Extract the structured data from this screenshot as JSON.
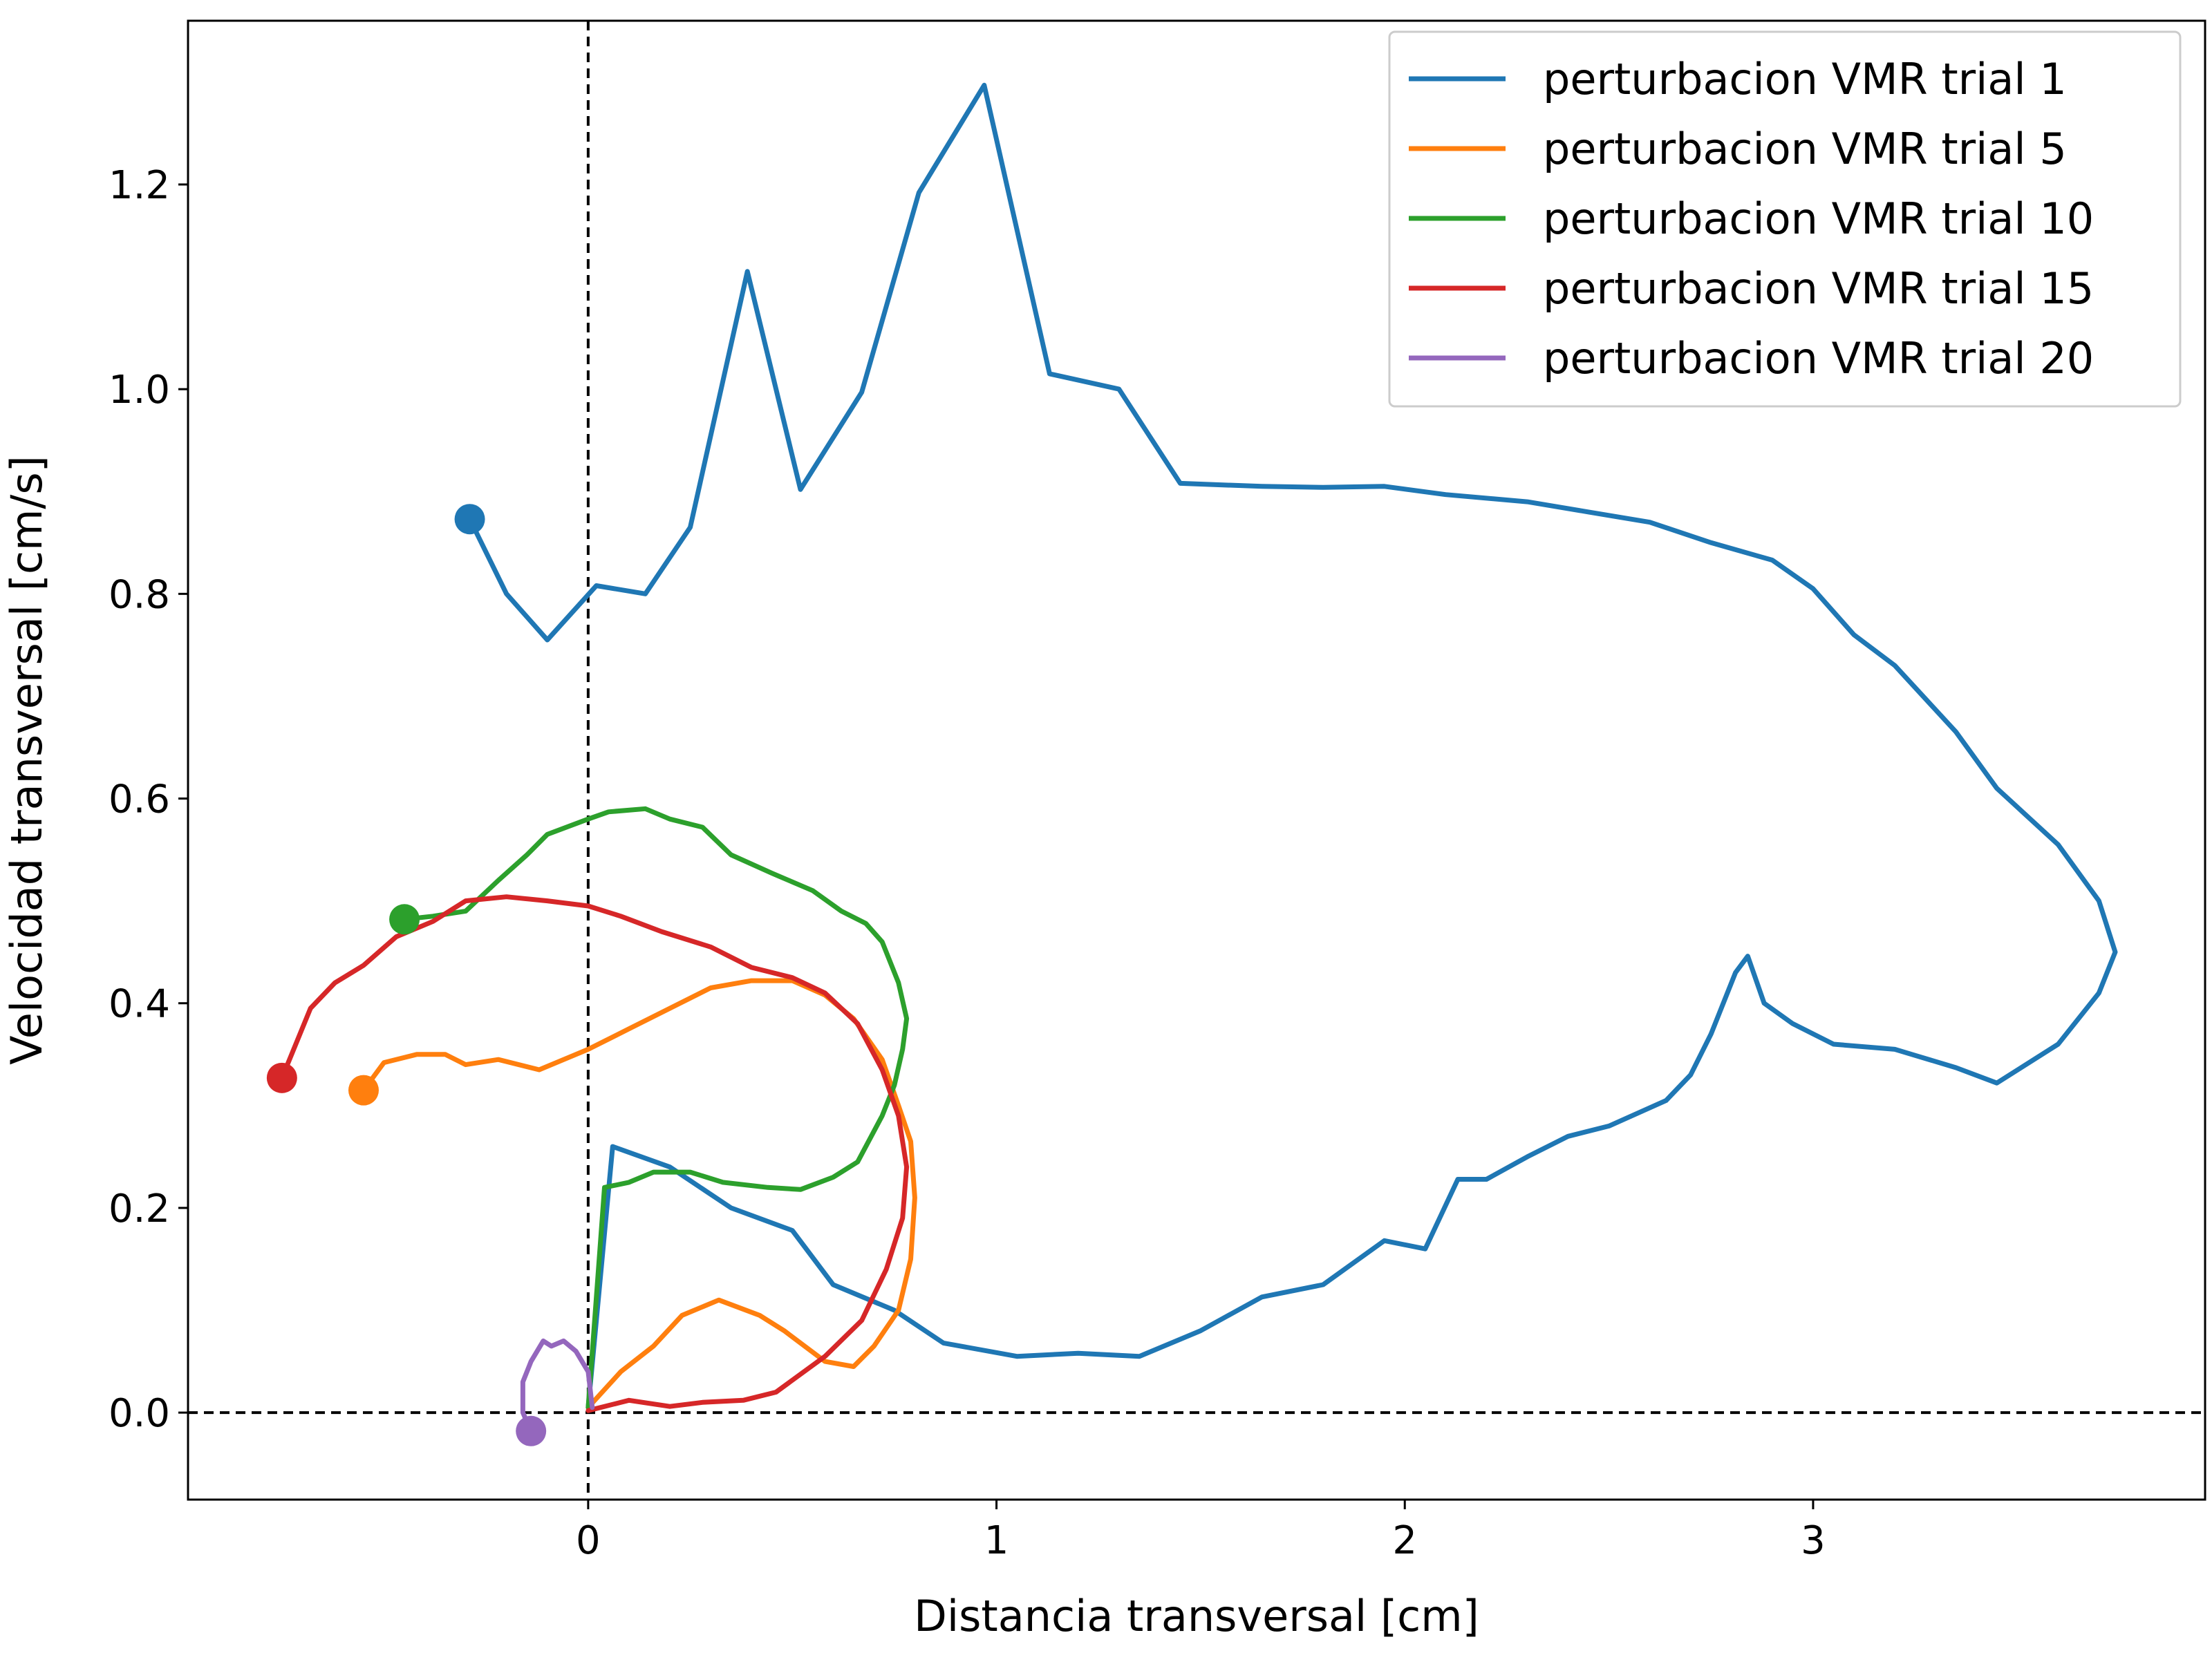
{
  "chart_data": {
    "type": "line",
    "xlabel": "Distancia transversal [cm]",
    "ylabel": "Velocidad transversal [cm/s]",
    "xlim": [
      -0.98,
      3.96
    ],
    "ylim": [
      -0.085,
      1.36
    ],
    "xticks": [
      0,
      1,
      2,
      3
    ],
    "yticks": [
      0.0,
      0.2,
      0.4,
      0.6,
      0.8,
      1.0,
      1.2
    ],
    "xtick_labels": [
      "0",
      "1",
      "2",
      "3"
    ],
    "ytick_labels": [
      "0.0",
      "0.2",
      "0.4",
      "0.6",
      "0.8",
      "1.0",
      "1.2"
    ],
    "reference_lines": {
      "vertical_x": 0,
      "horizontal_y": 0,
      "style": "dashed"
    },
    "legend_position": "top-right",
    "grid": false,
    "series": [
      {
        "name": "perturbacion VMR trial 1",
        "color": "#1f77b4",
        "start_marker": [
          -0.29,
          0.873
        ],
        "points": [
          [
            -0.29,
            0.873
          ],
          [
            -0.2,
            0.8
          ],
          [
            -0.1,
            0.755
          ],
          [
            0.02,
            0.808
          ],
          [
            0.14,
            0.8
          ],
          [
            0.25,
            0.865
          ],
          [
            0.39,
            1.115
          ],
          [
            0.52,
            0.902
          ],
          [
            0.67,
            0.997
          ],
          [
            0.81,
            1.192
          ],
          [
            0.97,
            1.297
          ],
          [
            1.13,
            1.015
          ],
          [
            1.3,
            1.0
          ],
          [
            1.45,
            0.908
          ],
          [
            1.65,
            0.905
          ],
          [
            1.8,
            0.904
          ],
          [
            1.95,
            0.905
          ],
          [
            2.1,
            0.897
          ],
          [
            2.3,
            0.89
          ],
          [
            2.45,
            0.88
          ],
          [
            2.6,
            0.87
          ],
          [
            2.75,
            0.85
          ],
          [
            2.9,
            0.833
          ],
          [
            3.0,
            0.805
          ],
          [
            3.1,
            0.76
          ],
          [
            3.2,
            0.73
          ],
          [
            3.35,
            0.665
          ],
          [
            3.45,
            0.61
          ],
          [
            3.6,
            0.555
          ],
          [
            3.7,
            0.5
          ],
          [
            3.74,
            0.45
          ],
          [
            3.7,
            0.41
          ],
          [
            3.6,
            0.36
          ],
          [
            3.45,
            0.322
          ],
          [
            3.35,
            0.337
          ],
          [
            3.2,
            0.355
          ],
          [
            3.05,
            0.36
          ],
          [
            2.95,
            0.38
          ],
          [
            2.88,
            0.4
          ],
          [
            2.84,
            0.446
          ],
          [
            2.81,
            0.43
          ],
          [
            2.75,
            0.37
          ],
          [
            2.7,
            0.33
          ],
          [
            2.64,
            0.305
          ],
          [
            2.5,
            0.28
          ],
          [
            2.4,
            0.27
          ],
          [
            2.3,
            0.25
          ],
          [
            2.2,
            0.228
          ],
          [
            2.13,
            0.228
          ],
          [
            2.05,
            0.16
          ],
          [
            1.95,
            0.168
          ],
          [
            1.8,
            0.125
          ],
          [
            1.65,
            0.113
          ],
          [
            1.5,
            0.08
          ],
          [
            1.35,
            0.055
          ],
          [
            1.2,
            0.058
          ],
          [
            1.05,
            0.055
          ],
          [
            0.87,
            0.068
          ],
          [
            0.75,
            0.1
          ],
          [
            0.6,
            0.125
          ],
          [
            0.5,
            0.178
          ],
          [
            0.35,
            0.2
          ],
          [
            0.2,
            0.24
          ],
          [
            0.06,
            0.26
          ],
          [
            0.0,
            0.005
          ]
        ]
      },
      {
        "name": "perturbacion VMR trial 5",
        "color": "#ff7f0e",
        "start_marker": [
          -0.55,
          0.315
        ],
        "points": [
          [
            -0.55,
            0.315
          ],
          [
            -0.5,
            0.342
          ],
          [
            -0.42,
            0.35
          ],
          [
            -0.35,
            0.35
          ],
          [
            -0.3,
            0.34
          ],
          [
            -0.22,
            0.345
          ],
          [
            -0.12,
            0.335
          ],
          [
            0.0,
            0.355
          ],
          [
            0.1,
            0.375
          ],
          [
            0.2,
            0.395
          ],
          [
            0.3,
            0.415
          ],
          [
            0.4,
            0.422
          ],
          [
            0.5,
            0.422
          ],
          [
            0.58,
            0.408
          ],
          [
            0.65,
            0.385
          ],
          [
            0.72,
            0.345
          ],
          [
            0.76,
            0.3
          ],
          [
            0.79,
            0.265
          ],
          [
            0.8,
            0.21
          ],
          [
            0.79,
            0.15
          ],
          [
            0.76,
            0.1
          ],
          [
            0.7,
            0.065
          ],
          [
            0.65,
            0.045
          ],
          [
            0.58,
            0.05
          ],
          [
            0.48,
            0.08
          ],
          [
            0.42,
            0.095
          ],
          [
            0.32,
            0.11
          ],
          [
            0.23,
            0.095
          ],
          [
            0.16,
            0.065
          ],
          [
            0.08,
            0.04
          ],
          [
            0.0,
            0.005
          ]
        ]
      },
      {
        "name": "perturbacion VMR trial 10",
        "color": "#2ca02c",
        "start_marker": [
          -0.45,
          0.482
        ],
        "points": [
          [
            -0.45,
            0.482
          ],
          [
            -0.38,
            0.485
          ],
          [
            -0.3,
            0.49
          ],
          [
            -0.22,
            0.52
          ],
          [
            -0.15,
            0.545
          ],
          [
            -0.1,
            0.565
          ],
          [
            0.0,
            0.58
          ],
          [
            0.05,
            0.587
          ],
          [
            0.14,
            0.59
          ],
          [
            0.2,
            0.58
          ],
          [
            0.28,
            0.572
          ],
          [
            0.35,
            0.545
          ],
          [
            0.45,
            0.527
          ],
          [
            0.55,
            0.51
          ],
          [
            0.62,
            0.49
          ],
          [
            0.68,
            0.478
          ],
          [
            0.72,
            0.46
          ],
          [
            0.76,
            0.42
          ],
          [
            0.78,
            0.385
          ],
          [
            0.77,
            0.355
          ],
          [
            0.75,
            0.32
          ],
          [
            0.72,
            0.29
          ],
          [
            0.66,
            0.245
          ],
          [
            0.6,
            0.23
          ],
          [
            0.52,
            0.218
          ],
          [
            0.44,
            0.22
          ],
          [
            0.33,
            0.225
          ],
          [
            0.25,
            0.235
          ],
          [
            0.16,
            0.235
          ],
          [
            0.1,
            0.225
          ],
          [
            0.04,
            0.22
          ],
          [
            0.0,
            0.005
          ]
        ]
      },
      {
        "name": "perturbacion VMR trial 15",
        "color": "#d62728",
        "start_marker": [
          -0.75,
          0.327
        ],
        "points": [
          [
            -0.75,
            0.327
          ],
          [
            -0.68,
            0.395
          ],
          [
            -0.62,
            0.42
          ],
          [
            -0.55,
            0.437
          ],
          [
            -0.47,
            0.465
          ],
          [
            -0.38,
            0.48
          ],
          [
            -0.3,
            0.5
          ],
          [
            -0.2,
            0.504
          ],
          [
            -0.1,
            0.5
          ],
          [
            0.0,
            0.495
          ],
          [
            0.08,
            0.485
          ],
          [
            0.18,
            0.47
          ],
          [
            0.3,
            0.455
          ],
          [
            0.4,
            0.435
          ],
          [
            0.5,
            0.425
          ],
          [
            0.58,
            0.41
          ],
          [
            0.66,
            0.38
          ],
          [
            0.72,
            0.335
          ],
          [
            0.76,
            0.29
          ],
          [
            0.78,
            0.24
          ],
          [
            0.77,
            0.19
          ],
          [
            0.73,
            0.14
          ],
          [
            0.67,
            0.09
          ],
          [
            0.58,
            0.055
          ],
          [
            0.46,
            0.02
          ],
          [
            0.38,
            0.012
          ],
          [
            0.28,
            0.01
          ],
          [
            0.2,
            0.006
          ],
          [
            0.1,
            0.012
          ],
          [
            0.0,
            0.002
          ]
        ]
      },
      {
        "name": "perturbacion VMR trial 20",
        "color": "#9467bd",
        "start_marker": [
          -0.14,
          -0.018
        ],
        "points": [
          [
            -0.14,
            -0.018
          ],
          [
            -0.16,
            0.0
          ],
          [
            -0.16,
            0.03
          ],
          [
            -0.14,
            0.05
          ],
          [
            -0.11,
            0.07
          ],
          [
            -0.09,
            0.065
          ],
          [
            -0.06,
            0.07
          ],
          [
            -0.03,
            0.06
          ],
          [
            0.0,
            0.04
          ],
          [
            0.01,
            0.005
          ]
        ]
      }
    ]
  }
}
